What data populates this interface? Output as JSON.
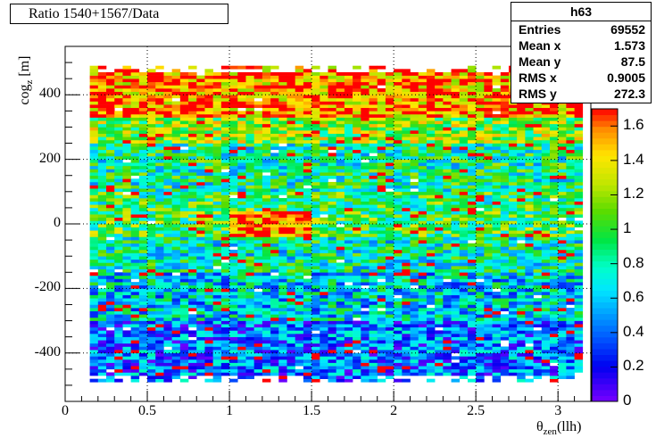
{
  "title": "Ratio 1540+1567/Data",
  "stats": {
    "name": "h63",
    "rows": [
      {
        "label": "Entries",
        "value": "69552"
      },
      {
        "label": "Mean x",
        "value": "1.573"
      },
      {
        "label": "Mean y",
        "value": "87.5"
      },
      {
        "label": "RMS x",
        "value": "0.9005"
      },
      {
        "label": "RMS y",
        "value": "272.3"
      }
    ]
  },
  "chart_data": {
    "type": "heatmap",
    "title": "Ratio 1540+1567/Data",
    "xlabel": "θzen(llh)",
    "ylabel": "cogz [m]",
    "xlim": [
      0,
      3.2
    ],
    "ylim": [
      -550,
      550
    ],
    "zlim": [
      0,
      1.7
    ],
    "x_ticks": [
      0,
      0.5,
      1,
      1.5,
      2,
      2.5,
      3
    ],
    "y_ticks": [
      -400,
      -200,
      0,
      200,
      400
    ],
    "z_ticks": [
      0,
      0.2,
      0.4,
      0.6,
      0.8,
      1,
      1.2,
      1.4,
      1.6
    ],
    "x_tick_labels": [
      "0",
      "0.5",
      "1",
      "1.5",
      "2",
      "2.5",
      "3"
    ],
    "y_tick_labels": [
      "-400",
      "-200",
      "0",
      "200",
      "400"
    ],
    "z_tick_labels": [
      "0",
      "0.2",
      "0.4",
      "0.6",
      "0.8",
      "1",
      "1.2",
      "1.4",
      "1.6"
    ],
    "grid": true,
    "x_bin_width": 0.05,
    "y_bin_width": 10,
    "x_bin_range": [
      0.15,
      3.15
    ],
    "y_bin_range": [
      -490,
      490
    ],
    "regions": [
      {
        "desc": "high ratio top band",
        "x": [
          0.15,
          3.15
        ],
        "y": [
          330,
          480
        ],
        "z": 1.7
      },
      {
        "desc": "high ratio center blob",
        "x": [
          1.0,
          1.5
        ],
        "y": [
          -40,
          30
        ],
        "z": 1.7
      },
      {
        "desc": "low ratio bottom band",
        "x": [
          0.15,
          3.15
        ],
        "y": [
          -470,
          -300
        ],
        "z": 0.4
      },
      {
        "desc": "mid region",
        "x": [
          0.15,
          3.15
        ],
        "y": [
          -300,
          330
        ],
        "z": 0.8
      }
    ]
  }
}
